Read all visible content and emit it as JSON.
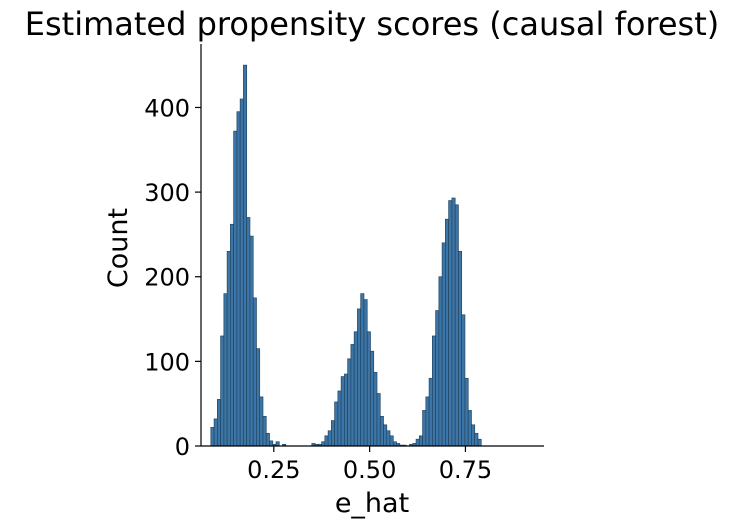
{
  "chart_data": {
    "type": "bar",
    "title": "Estimated propensity scores (causal forest)",
    "xlabel": "e_hat",
    "ylabel": "Count",
    "xlim": [
      0.06,
      0.955
    ],
    "ylim": [
      0,
      475
    ],
    "xticks": [
      0.25,
      0.5,
      0.75
    ],
    "xtick_labels": [
      "0.25",
      "0.50",
      "0.75"
    ],
    "yticks": [
      0,
      100,
      200,
      300,
      400
    ],
    "ytick_labels": [
      "0",
      "100",
      "200",
      "300",
      "400"
    ],
    "bin_start": 0.0857,
    "bin_width": 0.0085,
    "counts": [
      22,
      32,
      55,
      130,
      180,
      230,
      262,
      372,
      395,
      410,
      450,
      270,
      248,
      175,
      115,
      58,
      35,
      15,
      6,
      2,
      5,
      0,
      2,
      0,
      0,
      0,
      0,
      0,
      0,
      0,
      0,
      3,
      2,
      2,
      5,
      12,
      18,
      30,
      52,
      65,
      82,
      85,
      103,
      120,
      135,
      162,
      180,
      173,
      135,
      112,
      87,
      62,
      35,
      25,
      18,
      12,
      5,
      3,
      1,
      1,
      0,
      2,
      3,
      8,
      12,
      42,
      58,
      80,
      130,
      160,
      200,
      240,
      268,
      290,
      293,
      285,
      230,
      155,
      80,
      42,
      25,
      15,
      8
    ],
    "bar_color": "#3c75a7",
    "grid": false,
    "legend": "none"
  }
}
